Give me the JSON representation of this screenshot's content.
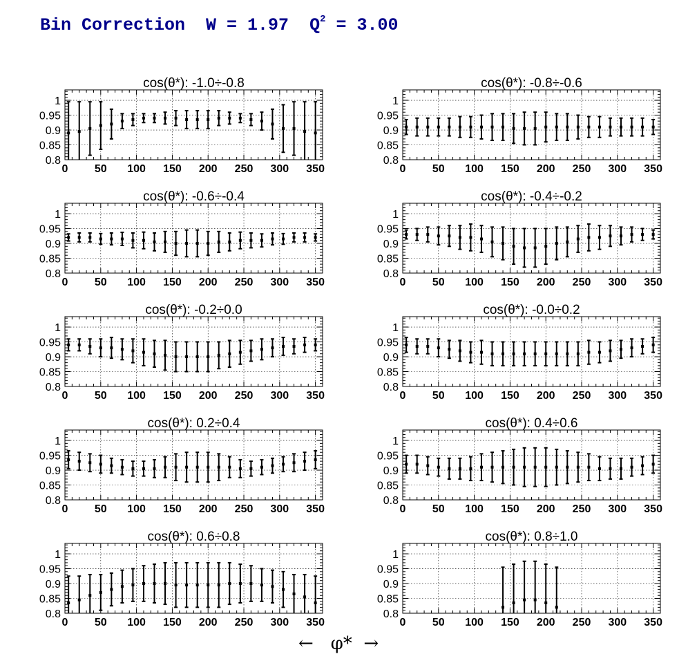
{
  "title": {
    "prefix": "Bin Correction  W = 1.97  Q",
    "exp": "2",
    "suffix": " = 3.00"
  },
  "xaxis_label": {
    "left_arrow": "←",
    "symbol": "φ*",
    "right_arrow": "→"
  },
  "chart_data": {
    "type": "scatter",
    "x": [
      5,
      20,
      35,
      50,
      65,
      80,
      95,
      110,
      125,
      140,
      155,
      170,
      185,
      200,
      215,
      230,
      245,
      260,
      275,
      290,
      305,
      320,
      335,
      350
    ],
    "xlim": [
      0,
      360
    ],
    "ylim": [
      0.8,
      1.035
    ],
    "x_ticks": [
      0,
      50,
      100,
      150,
      200,
      250,
      300,
      350
    ],
    "y_ticks": [
      "0.8",
      "0.85",
      "0.9",
      "0.95",
      "1"
    ],
    "grid": true,
    "panels": [
      {
        "title": "cos(θ*): -1.0÷-0.8",
        "y": [
          0.89,
          0.895,
          0.905,
          0.915,
          0.92,
          0.93,
          0.935,
          0.94,
          0.94,
          0.94,
          0.94,
          0.935,
          0.935,
          0.935,
          0.94,
          0.94,
          0.94,
          0.935,
          0.93,
          0.92,
          0.905,
          0.905,
          0.895,
          0.89
        ],
        "err": [
          0.105,
          0.1,
          0.09,
          0.08,
          0.05,
          0.025,
          0.02,
          0.015,
          0.015,
          0.02,
          0.025,
          0.03,
          0.03,
          0.03,
          0.025,
          0.02,
          0.015,
          0.02,
          0.03,
          0.05,
          0.08,
          0.09,
          0.1,
          0.105
        ]
      },
      {
        "title": "cos(θ*): -0.8÷-0.6",
        "y": [
          0.91,
          0.91,
          0.91,
          0.91,
          0.91,
          0.91,
          0.91,
          0.91,
          0.91,
          0.91,
          0.905,
          0.905,
          0.905,
          0.91,
          0.91,
          0.91,
          0.91,
          0.91,
          0.91,
          0.91,
          0.91,
          0.91,
          0.91,
          0.91
        ],
        "err": [
          0.025,
          0.03,
          0.03,
          0.03,
          0.03,
          0.035,
          0.035,
          0.04,
          0.045,
          0.045,
          0.05,
          0.055,
          0.055,
          0.05,
          0.045,
          0.045,
          0.04,
          0.035,
          0.035,
          0.03,
          0.03,
          0.03,
          0.03,
          0.025
        ]
      },
      {
        "title": "cos(θ*): -0.6÷-0.4",
        "y": [
          0.92,
          0.92,
          0.92,
          0.915,
          0.915,
          0.915,
          0.91,
          0.91,
          0.905,
          0.905,
          0.9,
          0.9,
          0.9,
          0.9,
          0.905,
          0.905,
          0.91,
          0.91,
          0.91,
          0.915,
          0.915,
          0.92,
          0.92,
          0.92
        ],
        "err": [
          0.012,
          0.015,
          0.015,
          0.018,
          0.02,
          0.022,
          0.025,
          0.028,
          0.03,
          0.035,
          0.04,
          0.045,
          0.045,
          0.04,
          0.035,
          0.03,
          0.028,
          0.025,
          0.022,
          0.02,
          0.018,
          0.015,
          0.015,
          0.012
        ]
      },
      {
        "title": "cos(θ*): -0.4÷-0.2",
        "y": [
          0.93,
          0.93,
          0.93,
          0.925,
          0.925,
          0.92,
          0.92,
          0.915,
          0.905,
          0.9,
          0.89,
          0.885,
          0.885,
          0.89,
          0.9,
          0.905,
          0.915,
          0.92,
          0.92,
          0.925,
          0.925,
          0.93,
          0.93,
          0.93
        ],
        "err": [
          0.015,
          0.02,
          0.025,
          0.03,
          0.035,
          0.04,
          0.045,
          0.045,
          0.05,
          0.055,
          0.06,
          0.065,
          0.065,
          0.06,
          0.055,
          0.05,
          0.045,
          0.045,
          0.04,
          0.035,
          0.03,
          0.025,
          0.02,
          0.015
        ]
      },
      {
        "title": "cos(θ*): -0.2÷0.0",
        "y": [
          0.94,
          0.94,
          0.935,
          0.93,
          0.93,
          0.925,
          0.92,
          0.915,
          0.91,
          0.905,
          0.9,
          0.9,
          0.9,
          0.9,
          0.905,
          0.91,
          0.915,
          0.92,
          0.925,
          0.93,
          0.935,
          0.935,
          0.94,
          0.94
        ],
        "err": [
          0.02,
          0.02,
          0.025,
          0.03,
          0.035,
          0.035,
          0.04,
          0.045,
          0.045,
          0.05,
          0.05,
          0.05,
          0.05,
          0.05,
          0.045,
          0.045,
          0.04,
          0.035,
          0.035,
          0.03,
          0.03,
          0.025,
          0.025,
          0.02
        ]
      },
      {
        "title": "cos(θ*): -0.0÷0.2",
        "y": [
          0.94,
          0.935,
          0.935,
          0.93,
          0.925,
          0.92,
          0.915,
          0.915,
          0.91,
          0.91,
          0.91,
          0.91,
          0.91,
          0.91,
          0.91,
          0.91,
          0.91,
          0.915,
          0.915,
          0.92,
          0.925,
          0.93,
          0.935,
          0.94
        ],
        "err": [
          0.025,
          0.025,
          0.025,
          0.03,
          0.03,
          0.035,
          0.035,
          0.04,
          0.04,
          0.04,
          0.04,
          0.04,
          0.04,
          0.04,
          0.04,
          0.04,
          0.04,
          0.04,
          0.035,
          0.035,
          0.03,
          0.03,
          0.025,
          0.025
        ]
      },
      {
        "title": "cos(θ*): 0.2÷0.4",
        "y": [
          0.935,
          0.93,
          0.925,
          0.92,
          0.915,
          0.91,
          0.905,
          0.905,
          0.905,
          0.91,
          0.91,
          0.91,
          0.91,
          0.91,
          0.91,
          0.91,
          0.905,
          0.905,
          0.91,
          0.915,
          0.92,
          0.925,
          0.93,
          0.935
        ],
        "err": [
          0.03,
          0.03,
          0.03,
          0.03,
          0.025,
          0.025,
          0.025,
          0.025,
          0.03,
          0.035,
          0.045,
          0.05,
          0.05,
          0.05,
          0.045,
          0.035,
          0.03,
          0.025,
          0.025,
          0.025,
          0.025,
          0.03,
          0.03,
          0.03
        ]
      },
      {
        "title": "cos(θ*): 0.4÷0.6",
        "y": [
          0.92,
          0.92,
          0.915,
          0.91,
          0.905,
          0.905,
          0.905,
          0.91,
          0.91,
          0.91,
          0.91,
          0.91,
          0.91,
          0.91,
          0.91,
          0.91,
          0.91,
          0.91,
          0.905,
          0.905,
          0.905,
          0.91,
          0.915,
          0.92
        ],
        "err": [
          0.03,
          0.03,
          0.03,
          0.03,
          0.035,
          0.035,
          0.04,
          0.045,
          0.05,
          0.055,
          0.06,
          0.065,
          0.065,
          0.065,
          0.06,
          0.055,
          0.05,
          0.045,
          0.04,
          0.035,
          0.035,
          0.03,
          0.03,
          0.03
        ]
      },
      {
        "title": "cos(θ*): 0.6÷0.8",
        "y": [
          0.835,
          0.845,
          0.86,
          0.87,
          0.88,
          0.89,
          0.895,
          0.9,
          0.9,
          0.9,
          0.895,
          0.895,
          0.895,
          0.895,
          0.895,
          0.9,
          0.9,
          0.9,
          0.895,
          0.89,
          0.88,
          0.865,
          0.855,
          0.835
        ],
        "err": [
          0.09,
          0.08,
          0.07,
          0.06,
          0.055,
          0.055,
          0.055,
          0.06,
          0.065,
          0.07,
          0.075,
          0.075,
          0.075,
          0.075,
          0.075,
          0.07,
          0.065,
          0.06,
          0.055,
          0.055,
          0.06,
          0.065,
          0.075,
          0.09
        ]
      },
      {
        "title": "cos(θ*): 0.8÷1.0",
        "x": [
          140,
          155,
          170,
          185,
          200,
          215
        ],
        "y": [
          0.82,
          0.835,
          0.845,
          0.845,
          0.835,
          0.82
        ],
        "err": [
          0.135,
          0.13,
          0.13,
          0.13,
          0.13,
          0.135
        ]
      }
    ]
  }
}
